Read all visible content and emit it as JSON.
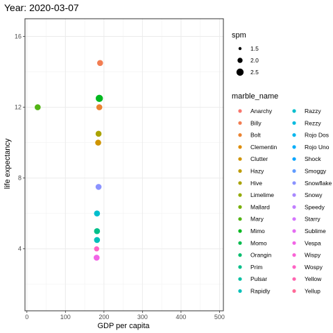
{
  "chart_data": {
    "type": "scatter",
    "title": "Year: 2020-03-07",
    "xlabel": "GDP per capita",
    "ylabel": "life expectancy",
    "xlim": [
      -5,
      510
    ],
    "ylim": [
      0.5,
      17.0
    ],
    "x_ticks": [
      0,
      100,
      200,
      300,
      400,
      500
    ],
    "y_ticks": [
      4,
      8,
      12,
      16
    ],
    "grid": true,
    "legend_position": "right",
    "size_legend": {
      "title": "spm",
      "entries": [
        {
          "label": "1.5",
          "value": 1.5
        },
        {
          "label": "2.0",
          "value": 2.0
        },
        {
          "label": "2.5",
          "value": 2.5
        }
      ]
    },
    "color_legend": {
      "title": "marble_name",
      "entries": [
        {
          "name": "Anarchy",
          "color": "#F8766D"
        },
        {
          "name": "Billy",
          "color": "#F27D52"
        },
        {
          "name": "Bolt",
          "color": "#EA8331"
        },
        {
          "name": "Clementin",
          "color": "#DE8C00"
        },
        {
          "name": "Clutter",
          "color": "#CF9400"
        },
        {
          "name": "Hazy",
          "color": "#BE9C00"
        },
        {
          "name": "Hive",
          "color": "#AAA300"
        },
        {
          "name": "Limelime",
          "color": "#93AA00"
        },
        {
          "name": "Mallard",
          "color": "#77AF00"
        },
        {
          "name": "Mary",
          "color": "#52B415"
        },
        {
          "name": "Mimo",
          "color": "#00B81F"
        },
        {
          "name": "Momo",
          "color": "#00BB4E"
        },
        {
          "name": "Orangin",
          "color": "#00BD6E"
        },
        {
          "name": "Prim",
          "color": "#00BF8A"
        },
        {
          "name": "Pulsar",
          "color": "#00C0A3"
        },
        {
          "name": "Rapidly",
          "color": "#00C0B9"
        },
        {
          "name": "Razzy",
          "color": "#00BECD"
        },
        {
          "name": "Rezzy",
          "color": "#00BBDF"
        },
        {
          "name": "Rojo Dos",
          "color": "#00B6EE"
        },
        {
          "name": "Rojo Uno",
          "color": "#00AEFA"
        },
        {
          "name": "Shock",
          "color": "#00A5FF"
        },
        {
          "name": "Smoggy",
          "color": "#619CFF"
        },
        {
          "name": "Snowflake",
          "color": "#8B93FF"
        },
        {
          "name": "Snowy",
          "color": "#A989FF"
        },
        {
          "name": "Speedy",
          "color": "#C17FFF"
        },
        {
          "name": "Starry",
          "color": "#D575FE"
        },
        {
          "name": "Sublime",
          "color": "#E56DF2"
        },
        {
          "name": "Vespa",
          "color": "#F265E6"
        },
        {
          "name": "Wispy",
          "color": "#FA63D6"
        },
        {
          "name": "Wospy",
          "color": "#FF63C4"
        },
        {
          "name": "Yellow",
          "color": "#FF65B0"
        },
        {
          "name": "Yellup",
          "color": "#FF6A98"
        }
      ]
    },
    "points": [
      {
        "marble": "Billy",
        "x": 190,
        "y": 14.5,
        "spm": 2.2,
        "color": "#F27D52"
      },
      {
        "marble": "Mary",
        "x": 28,
        "y": 12.0,
        "spm": 2.2,
        "color": "#52B415"
      },
      {
        "marble": "Mimo",
        "x": 188,
        "y": 12.5,
        "spm": 2.5,
        "color": "#00B81F"
      },
      {
        "marble": "Bolt",
        "x": 188,
        "y": 12.0,
        "spm": 2.2,
        "color": "#EA8331"
      },
      {
        "marble": "Hive",
        "x": 186,
        "y": 10.5,
        "spm": 2.2,
        "color": "#AAA300"
      },
      {
        "marble": "Clutter",
        "x": 185,
        "y": 10.0,
        "spm": 2.2,
        "color": "#CF9400"
      },
      {
        "marble": "Snowflake",
        "x": 186,
        "y": 7.5,
        "spm": 2.2,
        "color": "#8B93FF"
      },
      {
        "marble": "Razzy",
        "x": 182,
        "y": 6.0,
        "spm": 2.2,
        "color": "#00BECD"
      },
      {
        "marble": "Prim",
        "x": 182,
        "y": 5.0,
        "spm": 2.2,
        "color": "#00BF8A"
      },
      {
        "marble": "Rapidly",
        "x": 182,
        "y": 4.5,
        "spm": 2.2,
        "color": "#00C0B9"
      },
      {
        "marble": "Wospy",
        "x": 181,
        "y": 4.0,
        "spm": 2.0,
        "color": "#FF63C4"
      },
      {
        "marble": "Vespa",
        "x": 181,
        "y": 3.5,
        "spm": 2.2,
        "color": "#F265E6"
      }
    ]
  }
}
